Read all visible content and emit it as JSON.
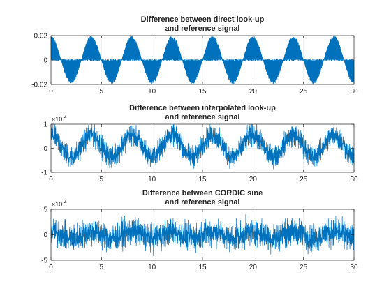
{
  "figure": {
    "background": "#ffffff",
    "line_color": "#0072bd",
    "grid_color": "#e6e6e6",
    "axes_color": "#262626"
  },
  "chart_data": [
    {
      "type": "line",
      "title_lines": [
        "Difference between direct look-up",
        "and reference signal"
      ],
      "xlabel": "",
      "ylabel": "",
      "xlim": [
        0,
        30
      ],
      "ylim": [
        -0.02,
        0.02
      ],
      "xticks": [
        0,
        5,
        10,
        15,
        20,
        25,
        30
      ],
      "yticks": [
        -0.02,
        0,
        0.02
      ],
      "ytick_labels": [
        "-0.02",
        "0",
        "0.02"
      ],
      "exponent_label": "",
      "grid": true,
      "legend": "none",
      "series": [
        {
          "description": "Dense quantization-error signal filling a band between zero and a sinusoidal envelope (period 4 s, amplitude 0.02) alternating sign each half-period",
          "envelope": {
            "amplitude": 0.02,
            "period": 4,
            "phase_start": "positive peak at x=0"
          },
          "noise_band": 0.0015
        }
      ]
    },
    {
      "type": "line",
      "title_lines": [
        "Difference between interpolated look-up",
        "and reference signal"
      ],
      "xlabel": "",
      "ylabel": "",
      "xlim": [
        0,
        30
      ],
      "ylim": [
        -1,
        1
      ],
      "xticks": [
        0,
        5,
        10,
        15,
        20,
        25,
        30
      ],
      "yticks": [
        -1,
        0,
        1
      ],
      "ytick_labels": [
        "-1",
        "0",
        "1"
      ],
      "exponent_label": {
        "base": "×10",
        "power": "-4"
      },
      "grid": true,
      "legend": "none",
      "series": [
        {
          "description": "Noisy error signal with periodic modulation (period 4 s) between roughly -0.9 and 1.1 (×10^-4)",
          "envelope": {
            "offset": 0.1,
            "amplitude": 0.45,
            "period": 4
          },
          "noise_band": 0.45
        }
      ]
    },
    {
      "type": "line",
      "title_lines": [
        "Difference between CORDIC sine",
        "and reference signal"
      ],
      "xlabel": "",
      "ylabel": "",
      "xlim": [
        0,
        30
      ],
      "ylim": [
        -5,
        5
      ],
      "xticks": [
        0,
        5,
        10,
        15,
        20,
        25,
        30
      ],
      "yticks": [
        -5,
        0,
        5
      ],
      "ytick_labels": [
        "-5",
        "0",
        "5"
      ],
      "exponent_label": {
        "base": "×10",
        "power": "-4"
      },
      "grid": true,
      "legend": "none",
      "series": [
        {
          "description": "Random-looking error signal centered on 0, mostly within ±3 with spikes near ±5 (×10^-4), mild 4 s periodic modulation",
          "envelope": {
            "offset": 0,
            "amplitude": 0.6,
            "period": 4
          },
          "noise_band": 2.6
        }
      ]
    }
  ]
}
